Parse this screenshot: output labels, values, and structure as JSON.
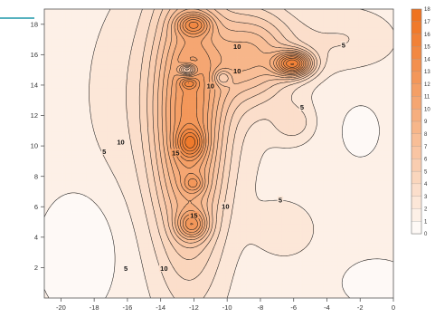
{
  "chart_data": {
    "type": "contour",
    "title": "",
    "xlabel": "",
    "ylabel": "",
    "xlim": [
      -21,
      0
    ],
    "ylim": [
      0,
      19
    ],
    "x_ticks": [
      "-20",
      "-18",
      "-16",
      "-14",
      "-12",
      "-10",
      "-8",
      "-6",
      "-4",
      "-2",
      "0"
    ],
    "y_ticks": [
      "2",
      "4",
      "6",
      "8",
      "10",
      "12",
      "14",
      "16",
      "18"
    ],
    "levels": [
      "0",
      "1",
      "2",
      "3",
      "4",
      "5",
      "6",
      "7",
      "8",
      "9",
      "10",
      "11",
      "12",
      "13",
      "14",
      "15",
      "16",
      "17",
      "18"
    ],
    "colorbar_labels": [
      "18",
      "17",
      "16",
      "15",
      "14",
      "13",
      "12",
      "11",
      "10",
      "9",
      "8",
      "7",
      "6",
      "5",
      "4",
      "3",
      "2",
      "1",
      "0"
    ],
    "color_low": "#ffffff",
    "color_high": "#ef6f1a",
    "peaks": [
      {
        "x": -12,
        "y": 18,
        "value": 17
      },
      {
        "x": -6,
        "y": 15.4,
        "value": 16
      },
      {
        "x": -12.2,
        "y": 10.2,
        "value": 16
      },
      {
        "x": -12,
        "y": 7.5,
        "value": 15
      },
      {
        "x": -12.1,
        "y": 4.8,
        "value": 17
      },
      {
        "x": -12.3,
        "y": 14.1,
        "value": 15
      }
    ],
    "troughs": [
      {
        "x": -12.4,
        "y": 15.0,
        "value": 4
      },
      {
        "x": -10.3,
        "y": 14.5,
        "value": 8
      }
    ],
    "contour_labels": [
      {
        "text": "10",
        "x": -9.4,
        "y": 16.5
      },
      {
        "text": "10",
        "x": -9.4,
        "y": 14.9
      },
      {
        "text": "10",
        "x": -11.0,
        "y": 13.9
      },
      {
        "text": "5",
        "x": -3.0,
        "y": 16.6
      },
      {
        "text": "5",
        "x": -5.5,
        "y": 12.5
      },
      {
        "text": "10",
        "x": -16.4,
        "y": 10.2
      },
      {
        "text": "15",
        "x": -13.1,
        "y": 9.5
      },
      {
        "text": "5",
        "x": -17.4,
        "y": 9.6
      },
      {
        "text": "10",
        "x": -10.1,
        "y": 6.0
      },
      {
        "text": "5",
        "x": -6.8,
        "y": 6.4
      },
      {
        "text": "15",
        "x": -12.0,
        "y": 5.4
      },
      {
        "text": "5",
        "x": -16.1,
        "y": 1.9
      },
      {
        "text": "10",
        "x": -13.8,
        "y": 1.9
      }
    ]
  }
}
